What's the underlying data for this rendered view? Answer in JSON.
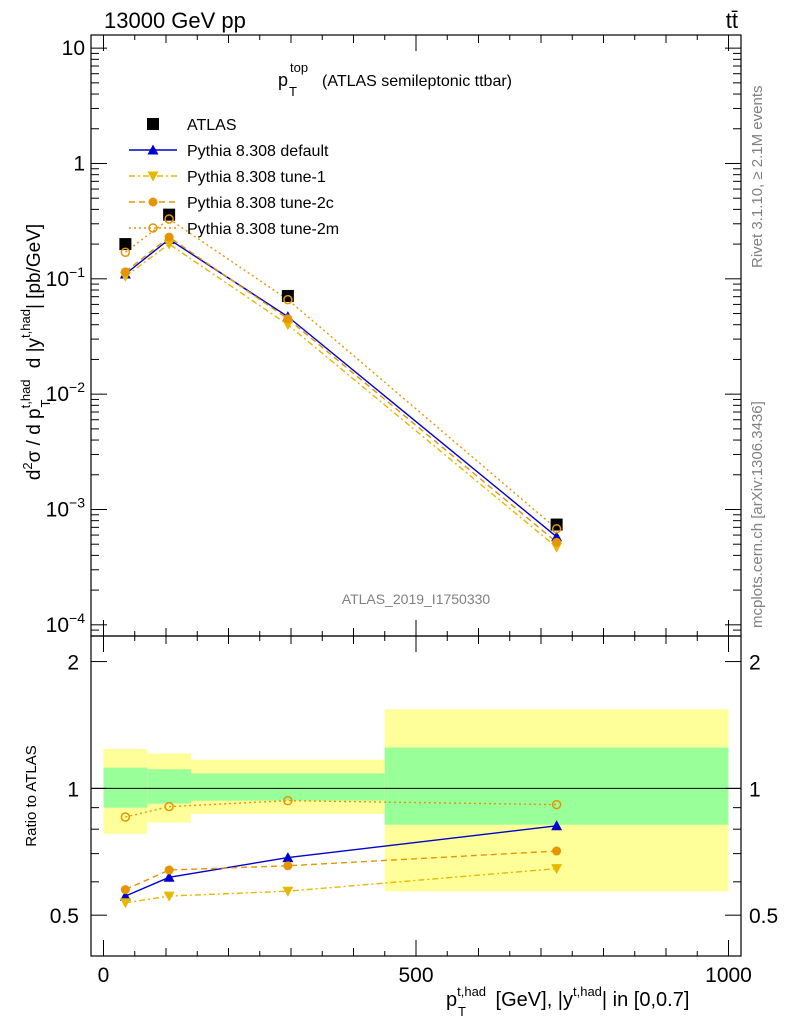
{
  "header": {
    "energy_label": "13000 GeV pp",
    "process_label": "tt̄"
  },
  "side": {
    "rivet_label": "Rivet 3.1.10, ≥ 2.1M events",
    "mcplots_label": "mcplots.cern.ch [arXiv:1306.3436]"
  },
  "chart_data": {
    "type": "scatter",
    "title_main": "p",
    "title_sup": "top",
    "title_sub": "T",
    "title_rest": "(ATLAS semileptonic ttbar)",
    "watermark": "ATLAS_2019_I1750330",
    "ylabel_main": "d²σ / d p_T^{t,had} d |y^{t,had}| [pb/GeV]",
    "ylabel_ratio": "Ratio to ATLAS",
    "xlabel": "p_T^{t,had} [GeV], |y^{t,had}| in [0,0.7]",
    "x_ticks": [
      "0",
      "500",
      "1000"
    ],
    "main_y_ticks": [
      {
        "base": "10",
        "exp": "−4"
      },
      {
        "base": "10",
        "exp": "−3"
      },
      {
        "base": "10",
        "exp": "−2"
      },
      {
        "base": "10",
        "exp": "−1"
      },
      {
        "base": "1",
        "exp": ""
      },
      {
        "base": "10",
        "exp": ""
      }
    ],
    "ratio_y_ticks": [
      "0.5",
      "1",
      "2"
    ],
    "xlim": [
      -20,
      1020
    ],
    "ylim_main": [
      8e-05,
      13
    ],
    "ylim_ratio": [
      0.4,
      2.3
    ],
    "yscale_main": "log",
    "yscale_ratio": "log",
    "legend_position": "top-left",
    "x": [
      35,
      105,
      295,
      725
    ],
    "bins": [
      [
        0,
        70
      ],
      [
        70,
        140
      ],
      [
        140,
        450
      ],
      [
        450,
        1000
      ]
    ],
    "band_green": [
      [
        0.9,
        1.12
      ],
      [
        0.92,
        1.11
      ],
      [
        0.935,
        1.085
      ],
      [
        0.82,
        1.25
      ]
    ],
    "band_yellow": [
      [
        0.78,
        1.24
      ],
      [
        0.83,
        1.21
      ],
      [
        0.87,
        1.17
      ],
      [
        0.57,
        1.54
      ]
    ],
    "series": [
      {
        "name": "ATLAS",
        "color": "#000000",
        "marker": "square",
        "line": "none",
        "values": [
          0.2,
          0.36,
          0.071,
          0.00074
        ],
        "ratio": [
          1,
          1,
          1,
          1
        ]
      },
      {
        "name": "Pythia 8.308 default",
        "color": "#0000cc",
        "marker": "triangle-up",
        "line": "solid",
        "values": [
          0.11,
          0.22,
          0.047,
          0.00058
        ],
        "ratio": [
          0.555,
          0.615,
          0.685,
          0.815
        ]
      },
      {
        "name": "Pythia 8.308 tune-1",
        "color": "#e6b800",
        "marker": "triangle-down",
        "line": "dashdot",
        "values": [
          0.105,
          0.2,
          0.04,
          0.00047
        ],
        "ratio": [
          0.535,
          0.555,
          0.57,
          0.645
        ]
      },
      {
        "name": "Pythia 8.308 tune-2c",
        "color": "#e69500",
        "marker": "circle-filled",
        "line": "dashed",
        "values": [
          0.115,
          0.23,
          0.045,
          0.00052
        ],
        "ratio": [
          0.575,
          0.64,
          0.655,
          0.71
        ]
      },
      {
        "name": "Pythia 8.308 tune-2m",
        "color": "#e69500",
        "marker": "circle-open",
        "line": "dotted",
        "values": [
          0.17,
          0.33,
          0.066,
          0.00068
        ],
        "ratio": [
          0.855,
          0.905,
          0.935,
          0.915
        ]
      }
    ]
  }
}
